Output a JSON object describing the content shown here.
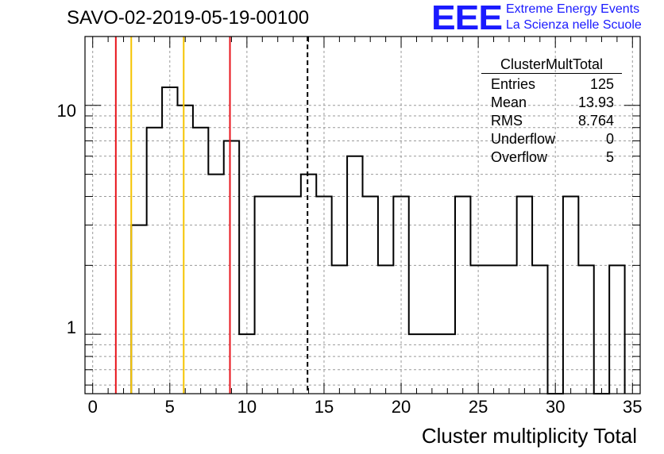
{
  "title": "SAVO-02-2019-05-19-00100",
  "logo": {
    "mark": "EEE",
    "line1": "Extreme Energy Events",
    "line2": "La Scienza nelle Scuole",
    "color": "#1a1aff"
  },
  "stats": {
    "name": "ClusterMultTotal",
    "rows": [
      {
        "label": "Entries",
        "value": "125"
      },
      {
        "label": "Mean",
        "value": "13.93"
      },
      {
        "label": "RMS",
        "value": "8.764"
      },
      {
        "label": "Underflow",
        "value": "0"
      },
      {
        "label": "Overflow",
        "value": "5"
      }
    ]
  },
  "chart_data": {
    "type": "bar",
    "title": "SAVO-02-2019-05-19-00100",
    "xlabel": "Cluster multiplicity Total",
    "ylabel": "",
    "xlim": [
      -0.5,
      35.5
    ],
    "ylim": [
      0.55,
      20
    ],
    "yscale": "log",
    "grid": true,
    "x_ticks": [
      "0",
      "5",
      "10",
      "15",
      "20",
      "25",
      "30",
      "35"
    ],
    "y_ticks": [
      "1",
      "10"
    ],
    "bins": {
      "low": [
        2.5,
        3.5,
        4.5,
        5.5,
        6.5,
        7.5,
        8.5,
        9.5,
        10.5,
        11.5,
        12.5,
        13.5,
        14.5,
        15.5,
        16.5,
        17.5,
        18.5,
        19.5,
        20.5,
        21.5,
        22.5,
        23.5,
        24.5,
        25.5,
        26.5,
        27.5,
        28.5,
        29.5,
        30.5,
        31.5,
        32.5,
        33.5
      ],
      "high": [
        3.5,
        4.5,
        5.5,
        6.5,
        7.5,
        8.5,
        9.5,
        10.5,
        11.5,
        12.5,
        13.5,
        14.5,
        15.5,
        16.5,
        17.5,
        18.5,
        19.5,
        20.5,
        21.5,
        22.5,
        23.5,
        24.5,
        25.5,
        26.5,
        27.5,
        28.5,
        29.5,
        30.5,
        31.5,
        32.5,
        33.5,
        34.5
      ],
      "counts": [
        3,
        8,
        12,
        10,
        8,
        5,
        7,
        1,
        4,
        4,
        4,
        5,
        4,
        2,
        6,
        4,
        2,
        4,
        1,
        1,
        1,
        4,
        2,
        2,
        2,
        4,
        2,
        0,
        4,
        2,
        0,
        2
      ]
    },
    "lines": [
      {
        "x": 1.5,
        "color": "#e8141c",
        "style": "solid"
      },
      {
        "x": 2.5,
        "color": "#f5c400",
        "style": "solid"
      },
      {
        "x": 5.9,
        "color": "#f5c400",
        "style": "solid"
      },
      {
        "x": 8.9,
        "color": "#e8141c",
        "style": "solid"
      },
      {
        "x": 13.93,
        "color": "#000000",
        "style": "dashed"
      }
    ]
  }
}
